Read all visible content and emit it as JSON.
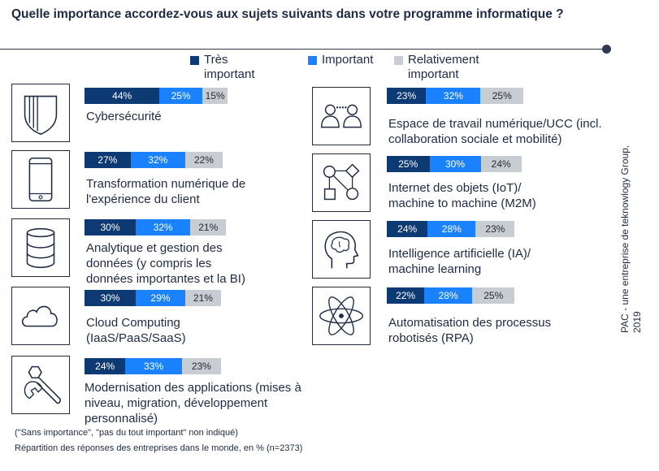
{
  "title": "Quelle importance accordez-vous aux sujets suivants dans votre programme informatique ?",
  "legend": [
    {
      "label": "Très important",
      "color": "#0d3a73"
    },
    {
      "label": "Important",
      "color": "#1a82ff"
    },
    {
      "label": "Relativement important",
      "color": "#c8ccd3"
    }
  ],
  "chart_data": {
    "type": "bar",
    "orientation": "horizontal-stacked",
    "series": [
      {
        "name": "Très important",
        "values": [
          44,
          27,
          30,
          30,
          24,
          23,
          25,
          24,
          22
        ]
      },
      {
        "name": "Important",
        "values": [
          25,
          32,
          32,
          29,
          33,
          32,
          30,
          28,
          28
        ]
      },
      {
        "name": "Relativement important",
        "values": [
          15,
          22,
          21,
          21,
          23,
          25,
          24,
          23,
          25
        ]
      }
    ],
    "categories": [
      "Cybersécurité",
      "Transformation numérique de l'expérience du client",
      "Analytique et gestion des données (y compris les données importantes et la BI)",
      "Cloud Computing (IaaS/PaaS/SaaS)",
      "Modernisation des applications (mises à niveau, migration, développement personnalisé)",
      "Espace de travail numérique/UCC (incl. collaboration sociale et mobilité)",
      "Internet des objets (IoT)/ machine to machine (M2M)",
      "Intelligence artificielle (IA)/ machine learning",
      "Automatisation des processus robotisés (RPA)"
    ],
    "value_suffix": "%"
  },
  "items": [
    {
      "label": "Cybersécurité",
      "icon": "shield-icon"
    },
    {
      "label": "Transformation numérique de\nl'expérience du client",
      "icon": "smartphone-icon"
    },
    {
      "label": "Analytique et gestion des\ndonnées (y compris les\ndonnées importantes et la BI)",
      "icon": "database-icon"
    },
    {
      "label": "Cloud Computing\n(IaaS/PaaS/SaaS)",
      "icon": "cloud-icon"
    },
    {
      "label": "Modernisation des applications (mises à\nniveau, migration, développement\npersonnalisé)",
      "icon": "wrench-icon"
    },
    {
      "label": "Espace de travail numérique/UCC (incl.\ncollaboration sociale et mobilité)",
      "icon": "people-chat-icon"
    },
    {
      "label": "Internet des objets (IoT)/\nmachine to machine (M2M)",
      "icon": "iot-flow-icon"
    },
    {
      "label": "Intelligence artificielle (IA)/\nmachine learning",
      "icon": "brain-head-icon"
    },
    {
      "label": "Automatisation des processus\nrobotisés (RPA)",
      "icon": "atom-icon"
    }
  ],
  "note": "(\"Sans importance\", \"pas du tout important\" non indiqué)",
  "footnote": "Répartition des réponses des entreprises dans le monde, en % (n=2373)",
  "source": "PAC - une entreprise de teknowlogy Group, 2019"
}
